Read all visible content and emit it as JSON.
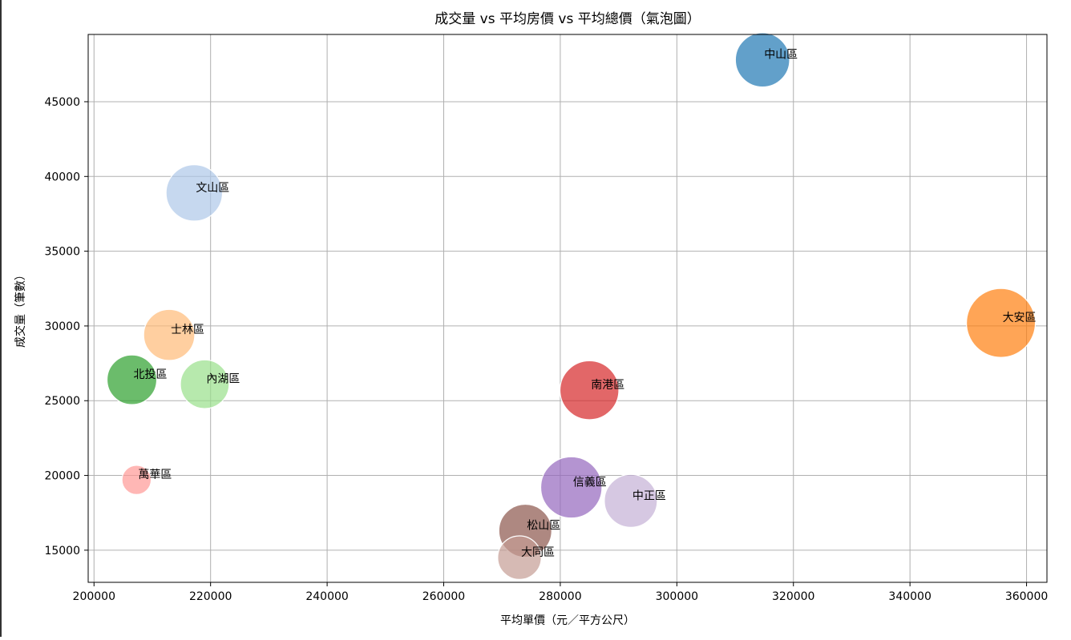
{
  "chart_data": {
    "type": "scatter",
    "title": "成交量 vs 平均房價 vs 平均總價（氣泡圖）",
    "xlabel": "平均單價（元／平方公尺）",
    "ylabel": "成交量（筆數）",
    "xlim": [
      199000,
      363500
    ],
    "ylim": [
      12850,
      49500
    ],
    "xticks": [
      200000,
      220000,
      240000,
      260000,
      280000,
      300000,
      320000,
      340000,
      360000
    ],
    "yticks": [
      15000,
      20000,
      25000,
      30000,
      35000,
      40000,
      45000
    ],
    "grid": true,
    "points": [
      {
        "label": "中山區",
        "x": 314700,
        "y": 47800,
        "size": 0.62,
        "color": "#1f77b4"
      },
      {
        "label": "大安區",
        "x": 355600,
        "y": 30200,
        "size": 1.0,
        "color": "#ff7f0e"
      },
      {
        "label": "文山區",
        "x": 217200,
        "y": 38900,
        "size": 0.67,
        "color": "#aec7e8"
      },
      {
        "label": "士林區",
        "x": 212900,
        "y": 29400,
        "size": 0.55,
        "color": "#ffbb78"
      },
      {
        "label": "北投區",
        "x": 206500,
        "y": 26400,
        "size": 0.52,
        "color": "#2ca02c"
      },
      {
        "label": "內湖區",
        "x": 219000,
        "y": 26100,
        "size": 0.5,
        "color": "#98df8a"
      },
      {
        "label": "南港區",
        "x": 285000,
        "y": 25700,
        "size": 0.73,
        "color": "#d62728"
      },
      {
        "label": "萬華區",
        "x": 207300,
        "y": 19700,
        "size": 0.18,
        "color": "#ff9896"
      },
      {
        "label": "信義區",
        "x": 281900,
        "y": 19200,
        "size": 0.79,
        "color": "#9467bd"
      },
      {
        "label": "中正區",
        "x": 292100,
        "y": 18300,
        "size": 0.59,
        "color": "#c5b0d5"
      },
      {
        "label": "松山區",
        "x": 274000,
        "y": 16300,
        "size": 0.59,
        "color": "#8c564b"
      },
      {
        "label": "大同區",
        "x": 273000,
        "y": 14500,
        "size": 0.4,
        "color": "#c49c94"
      }
    ]
  }
}
